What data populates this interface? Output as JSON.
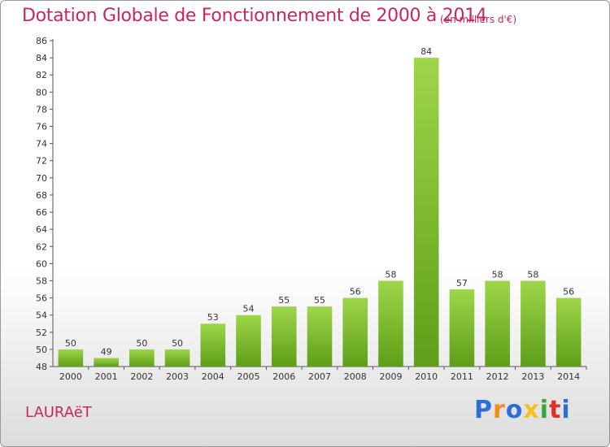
{
  "header": {
    "title": "Dotation Globale de Fonctionnement de 2000 à 2014",
    "unit": "(en milliers d'€)"
  },
  "footer": {
    "commune": "LAURAëT",
    "logo": "Proxiti",
    "logo_colors": [
      "#2b6fd6",
      "#f28c1b",
      "#2b6fd6",
      "#f2c21b",
      "#3aa33a",
      "#e0302a",
      "#2b6fd6"
    ]
  },
  "colors": {
    "bar_top": "#9ed64a",
    "bar_bottom": "#5e9e18",
    "title": "#c8265c"
  },
  "chart_data": {
    "type": "bar",
    "title": "Dotation Globale de Fonctionnement de 2000 à 2014",
    "xlabel": "",
    "ylabel": "",
    "categories": [
      "2000",
      "2001",
      "2002",
      "2003",
      "2004",
      "2005",
      "2006",
      "2007",
      "2008",
      "2009",
      "2010",
      "2011",
      "2012",
      "2013",
      "2014"
    ],
    "values": [
      50,
      49,
      50,
      50,
      53,
      54,
      55,
      55,
      56,
      58,
      84,
      57,
      58,
      58,
      56
    ],
    "ylim": [
      48,
      86
    ],
    "yticks": [
      48,
      50,
      52,
      54,
      56,
      58,
      60,
      62,
      64,
      66,
      68,
      70,
      72,
      74,
      76,
      78,
      80,
      82,
      84,
      86
    ],
    "grid": false,
    "legend": "none"
  }
}
